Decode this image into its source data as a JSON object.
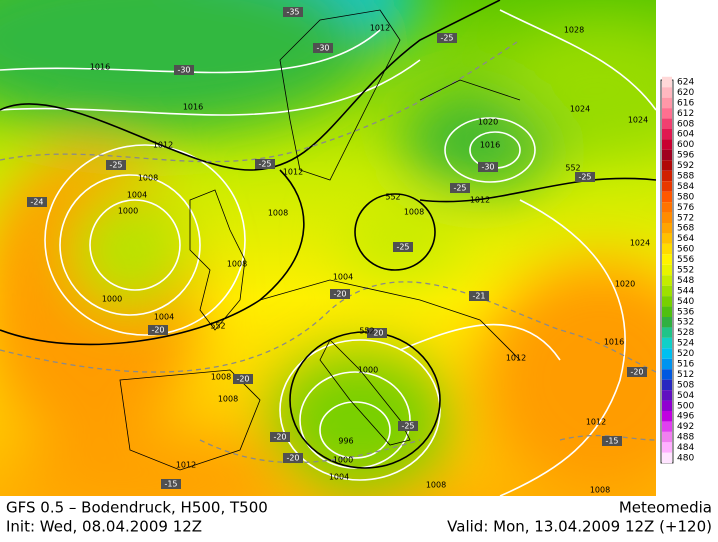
{
  "map": {
    "pressure_labels": [
      1016,
      1016,
      1012,
      1008,
      1004,
      1000,
      1000,
      1004,
      1008,
      1012,
      1008,
      1004,
      1000,
      996,
      1000,
      1004,
      1008,
      1008,
      1012,
      1012,
      1012,
      1016,
      1020,
      1024,
      1024,
      1028,
      1020,
      1016,
      1012,
      1008,
      1012,
      1008,
      1008,
      1024
    ],
    "temperature_labels": [
      -35,
      -30,
      -30,
      -25,
      -25,
      -25,
      -25,
      -30,
      -25,
      -25,
      -24,
      -20,
      -20,
      -21,
      -20,
      -20,
      -20,
      -20,
      -25,
      -20,
      -15,
      -15
    ],
    "height_labels": [
      552,
      552,
      552,
      552
    ]
  },
  "legend": {
    "labels": [
      624,
      620,
      616,
      612,
      608,
      604,
      600,
      596,
      592,
      588,
      584,
      580,
      576,
      572,
      568,
      564,
      560,
      556,
      552,
      548,
      544,
      540,
      536,
      532,
      528,
      524,
      520,
      516,
      512,
      508,
      504,
      500,
      496,
      492,
      488,
      484,
      480
    ],
    "colors": [
      "#ffd8d8",
      "#ffb8c0",
      "#ff98a8",
      "#ff7090",
      "#f04070",
      "#e01850",
      "#c80030",
      "#a00020",
      "#b00808",
      "#d02000",
      "#e83800",
      "#ff5800",
      "#ff7400",
      "#ff8c00",
      "#ffa400",
      "#ffc000",
      "#ffdc00",
      "#fff400",
      "#e8f400",
      "#c4ec00",
      "#9ee000",
      "#78d000",
      "#50c010",
      "#30b040",
      "#20c488",
      "#10d0c8",
      "#00c0f0",
      "#0094f0",
      "#0058e0",
      "#2828c0",
      "#6010c0",
      "#9000d0",
      "#c000e0",
      "#e040f0",
      "#f080f0",
      "#ffb0ff",
      "#ffe4ff"
    ]
  },
  "footer": {
    "model": "GFS 0.5 – Bodendruck, H500, T500",
    "brand": "Meteomedia",
    "init": "Init: Wed, 08.04.2009 12Z",
    "valid": "Valid: Mon, 13.04.2009 12Z (+120)"
  }
}
